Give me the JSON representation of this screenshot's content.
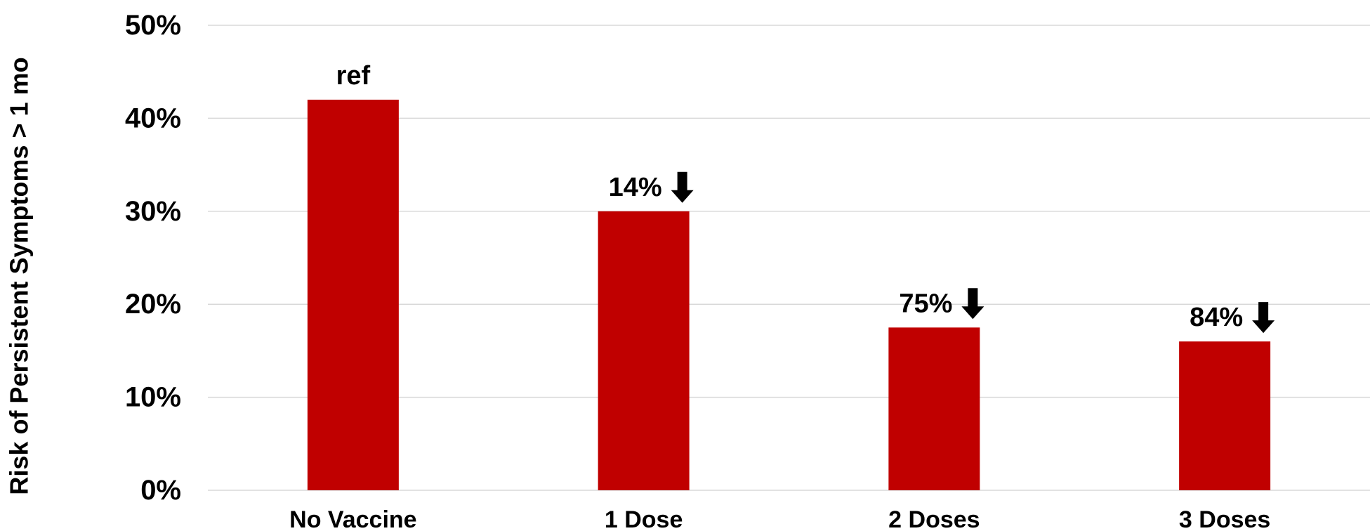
{
  "chart_data": {
    "type": "bar",
    "categories": [
      "No Vaccine",
      "1 Dose",
      "2 Doses",
      "3 Doses"
    ],
    "values": [
      42,
      30,
      17.5,
      16
    ],
    "bar_labels": [
      "ref",
      "14%",
      "75%",
      "84%"
    ],
    "bar_label_arrows": [
      false,
      true,
      true,
      true
    ],
    "ylabel": "Risk of Persistent Symptoms > 1 mo",
    "ylim": [
      0,
      50
    ],
    "y_ticks": [
      0,
      10,
      20,
      30,
      40,
      50
    ],
    "y_tick_labels": [
      "0%",
      "10%",
      "20%",
      "30%",
      "40%",
      "50%"
    ],
    "grid": true,
    "bar_color": "#C00000",
    "grid_color": "#D9D9D9",
    "arrow_icon": "down-arrow-icon"
  }
}
